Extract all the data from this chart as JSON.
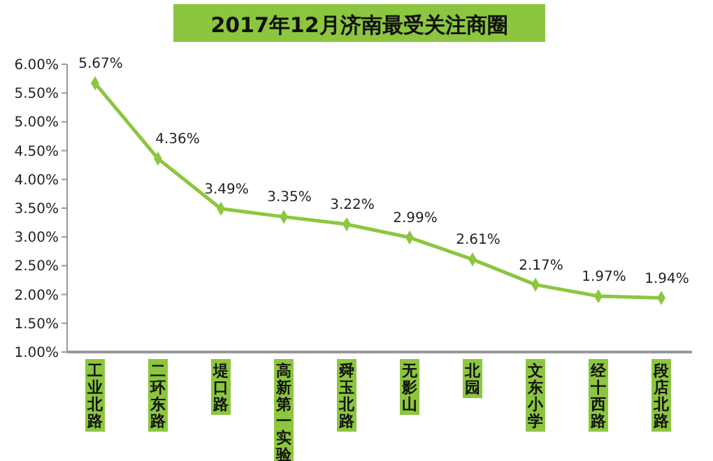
{
  "chart_data": {
    "type": "line",
    "title": "2017年12月济南最受关注商圈",
    "categories": [
      "工业北路",
      "二环东路",
      "堤口路",
      "高新第一实验",
      "舜玉北路",
      "无影山",
      "北园",
      "文东小学",
      "经十西路",
      "段店北路"
    ],
    "series": [
      {
        "color": "#8cc63f",
        "values": [
          5.67,
          4.36,
          3.49,
          3.35,
          3.22,
          2.99,
          2.61,
          2.17,
          1.97,
          1.94
        ],
        "value_labels": [
          "5.67%",
          "4.36%",
          "3.49%",
          "3.35%",
          "3.22%",
          "2.99%",
          "2.61%",
          "2.17%",
          "1.97%",
          "1.94%"
        ]
      }
    ],
    "ylim": [
      1,
      6
    ],
    "yticks": [
      {
        "value": 1,
        "label": "1.00%"
      },
      {
        "value": 1.5,
        "label": "1.50%"
      },
      {
        "value": 2,
        "label": "2.00%"
      },
      {
        "value": 2.5,
        "label": "2.50%"
      },
      {
        "value": 3,
        "label": "3.00%"
      },
      {
        "value": 3.5,
        "label": "3.50%"
      },
      {
        "value": 4,
        "label": "4.00%"
      },
      {
        "value": 4.5,
        "label": "4.50%"
      },
      {
        "value": 5,
        "label": "5.00%"
      },
      {
        "value": 5.5,
        "label": "5.50%"
      },
      {
        "value": 6,
        "label": "6.00%"
      }
    ],
    "grid": false,
    "marker": "diamond",
    "line_style": "solid"
  }
}
